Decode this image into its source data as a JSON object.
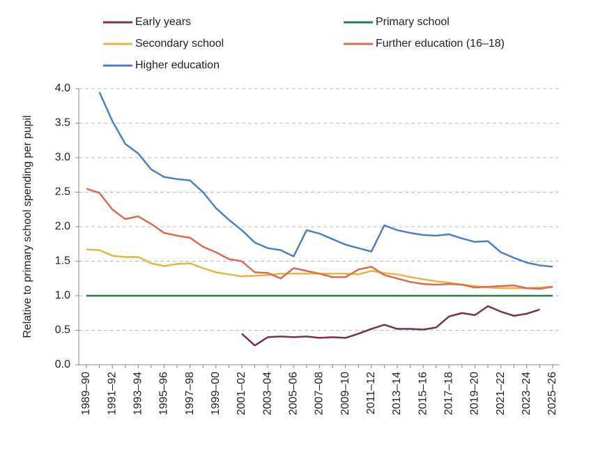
{
  "chart_data": {
    "type": "line",
    "y_label": "Relative to primary school spending per pupil",
    "categories": [
      "1989–90",
      null,
      "1991–92",
      null,
      "1993–94",
      null,
      "1995–96",
      null,
      "1997–98",
      null,
      "1999–00",
      null,
      "2001–02",
      null,
      "2003–04",
      null,
      "2005–06",
      null,
      "2007–08",
      null,
      "2009–10",
      null,
      "2011–12",
      null,
      "2013–14",
      null,
      "2015–16",
      null,
      "2017–18",
      null,
      "2019–20",
      null,
      "2021–22",
      null,
      "2023–24",
      null,
      "2025–26"
    ],
    "ylim": [
      0,
      4
    ],
    "yticks": [
      {
        "value": 0,
        "label": "0.0"
      },
      {
        "value": 0.5,
        "label": "0.5"
      },
      {
        "value": 1,
        "label": "1.0"
      },
      {
        "value": 1.5,
        "label": "1.5"
      },
      {
        "value": 2,
        "label": "2.0"
      },
      {
        "value": 2.5,
        "label": "2.5"
      },
      {
        "value": 3,
        "label": "3.0"
      },
      {
        "value": 3.5,
        "label": "3.5"
      },
      {
        "value": 4,
        "label": "4.0"
      }
    ],
    "grid": true,
    "series": [
      {
        "name": "Early years",
        "color": "#7b2d52",
        "values": [
          null,
          null,
          null,
          null,
          null,
          null,
          null,
          null,
          null,
          null,
          null,
          null,
          0.45,
          0.28,
          0.4,
          0.41,
          0.4,
          0.41,
          0.39,
          0.4,
          0.39,
          0.45,
          0.52,
          0.58,
          0.52,
          0.52,
          0.51,
          0.54,
          0.7,
          0.75,
          0.72,
          0.85,
          0.77,
          0.71,
          0.74,
          0.8,
          null
        ]
      },
      {
        "name": "Primary school",
        "color": "#2e7a50",
        "values": [
          1,
          1,
          1,
          1,
          1,
          1,
          1,
          1,
          1,
          1,
          1,
          1,
          1,
          1,
          1,
          1,
          1,
          1,
          1,
          1,
          1,
          1,
          1,
          1,
          1,
          1,
          1,
          1,
          1,
          1,
          1,
          1,
          1,
          1,
          1,
          1,
          1
        ]
      },
      {
        "name": "Secondary school",
        "color": "#e8b440",
        "values": [
          1.67,
          1.66,
          1.58,
          1.56,
          1.56,
          1.47,
          1.43,
          1.46,
          1.47,
          1.4,
          1.34,
          1.31,
          1.28,
          1.29,
          1.3,
          1.32,
          1.32,
          1.32,
          1.32,
          1.32,
          1.32,
          1.31,
          1.36,
          1.33,
          1.31,
          1.27,
          1.24,
          1.21,
          1.19,
          1.16,
          1.14,
          1.12,
          1.11,
          1.11,
          1.11,
          1.12,
          1.13
        ]
      },
      {
        "name": "Further education (16–18)",
        "color": "#dd6a4e",
        "values": [
          2.55,
          2.49,
          2.25,
          2.11,
          2.15,
          2.04,
          1.91,
          1.87,
          1.84,
          1.71,
          1.63,
          1.53,
          1.5,
          1.34,
          1.33,
          1.25,
          1.4,
          1.36,
          1.32,
          1.27,
          1.27,
          1.38,
          1.42,
          1.3,
          1.25,
          1.2,
          1.17,
          1.16,
          1.17,
          1.16,
          1.12,
          1.13,
          1.14,
          1.15,
          1.11,
          1.1,
          1.13
        ]
      },
      {
        "name": "Higher education",
        "color": "#4a7fc8",
        "values": [
          null,
          3.95,
          3.53,
          3.2,
          3.06,
          2.83,
          2.72,
          2.69,
          2.67,
          2.5,
          2.27,
          2.1,
          1.95,
          1.77,
          1.69,
          1.66,
          1.57,
          1.95,
          1.9,
          1.82,
          1.74,
          1.69,
          1.64,
          2.02,
          1.95,
          1.91,
          1.88,
          1.87,
          1.89,
          1.83,
          1.78,
          1.79,
          1.63,
          1.55,
          1.48,
          1.44,
          1.42
        ]
      }
    ]
  }
}
